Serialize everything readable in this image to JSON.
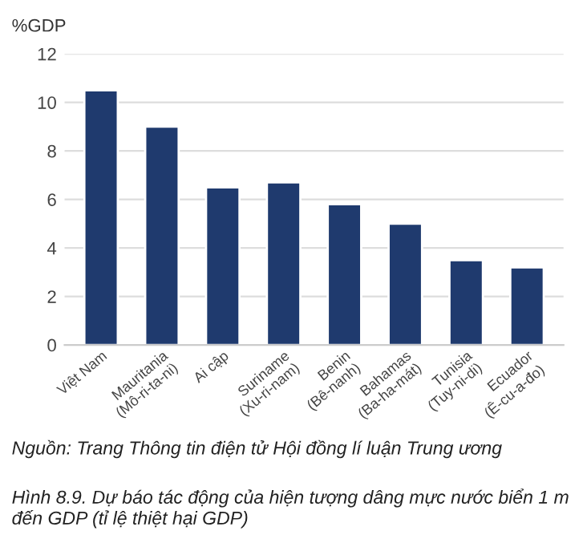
{
  "chart_data": {
    "type": "bar",
    "ylabel": "%GDP",
    "categories": [
      "Việt Nam",
      "Mauritania\n(Mô-ri-ta-ni)",
      "Ai cập",
      "Suriname\n(Xu-ri-nam)",
      "Benin\n(Bê-nanh)",
      "Bahamas\n(Ba-ha-mát)",
      "Tunisia\n(Tuy-ni-di)",
      "Ecuador\n(Ê-cu-a-đo)"
    ],
    "values": [
      10.5,
      9.0,
      6.5,
      6.7,
      5.8,
      5.0,
      3.5,
      3.2
    ],
    "color": "#1f3a6e",
    "ylim": [
      0,
      12
    ],
    "yticks": [
      0,
      2,
      4,
      6,
      8,
      10,
      12
    ],
    "grid": "y",
    "annotations": [
      "Nguồn: Trang Thông tin điện tử Hội đồng lí luận Trung ương",
      "Hình 8.9. Dự báo tác động của hiện tượng dâng mực nước biển 1 m đến GDP (tỉ lệ thiệt hại GDP)"
    ]
  }
}
